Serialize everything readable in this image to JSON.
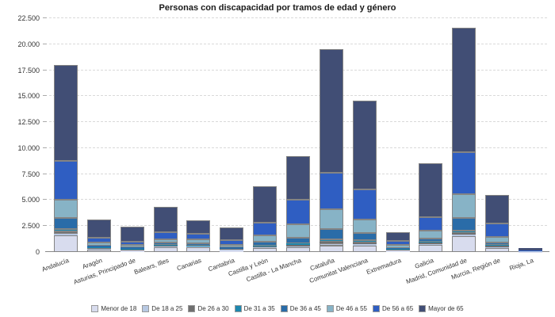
{
  "chart_data": {
    "type": "bar",
    "stacked": true,
    "title": "Personas con discapacidad por tramos de edad y género",
    "xlabel": "",
    "ylabel": "",
    "ylim": [
      0,
      22500
    ],
    "grid": "horizontal-dashed",
    "legend_position": "bottom",
    "ytick_values": [
      0,
      2500,
      5000,
      7500,
      10000,
      12500,
      15000,
      17500,
      20000,
      22500
    ],
    "ytick_labels": [
      "0",
      "2.500",
      "5.000",
      "7.500",
      "10.000",
      "12.500",
      "15.000",
      "17.500",
      "20.000",
      "22.500"
    ],
    "categories": [
      "Andalucía",
      "Aragón",
      "Asturias, Principado de",
      "Balears, Illes",
      "Canarias",
      "Cantabria",
      "Castilla y León",
      "Castilla - La Mancha",
      "Cataluña",
      "Comunitat Valenciana",
      "Extremadura",
      "Galicia",
      "Madrid, Comunidad de",
      "Murcia, Región de",
      "Rioja, La"
    ],
    "series": [
      {
        "name": "Menor de 18",
        "color": "#d8dcee",
        "values": [
          1600,
          230,
          150,
          450,
          450,
          180,
          400,
          480,
          620,
          610,
          150,
          690,
          1530,
          380,
          30
        ]
      },
      {
        "name": "De 18 a 25",
        "color": "#b7c8e2",
        "values": [
          150,
          60,
          40,
          60,
          50,
          40,
          60,
          70,
          230,
          150,
          40,
          80,
          150,
          60,
          10
        ]
      },
      {
        "name": "De 26 a 30",
        "color": "#6f6f6f",
        "values": [
          250,
          80,
          60,
          80,
          70,
          50,
          100,
          150,
          160,
          150,
          60,
          150,
          150,
          150,
          10
        ]
      },
      {
        "name": "De 31 a 35",
        "color": "#1d87ae",
        "values": [
          200,
          70,
          60,
          80,
          70,
          50,
          90,
          120,
          240,
          230,
          50,
          100,
          230,
          80,
          10
        ]
      },
      {
        "name": "De 36 a 45",
        "color": "#2a6ca8",
        "values": [
          1050,
          160,
          120,
          250,
          230,
          120,
          380,
          550,
          1000,
          690,
          120,
          300,
          1220,
          230,
          20
        ]
      },
      {
        "name": "De 46 a 55",
        "color": "#87b3c6",
        "values": [
          1800,
          300,
          250,
          320,
          320,
          250,
          550,
          1300,
          1900,
          1300,
          260,
          760,
          2290,
          530,
          30
        ]
      },
      {
        "name": "De 56 a 65",
        "color": "#2f5ec2",
        "values": [
          3700,
          450,
          320,
          650,
          600,
          430,
          1250,
          2400,
          3450,
          2900,
          420,
          1300,
          4040,
          1300,
          60
        ]
      },
      {
        "name": "Mayor de 65",
        "color": "#414e75",
        "values": [
          9250,
          1800,
          1450,
          2460,
          1260,
          1280,
          3470,
          4180,
          11900,
          8540,
          800,
          5170,
          11990,
          2770,
          180
        ]
      }
    ]
  },
  "style": {
    "segment_border_color": "#848484",
    "gridline_color": "#d9d9d9",
    "axis_line_color": "#888888",
    "text_color": "#333333"
  }
}
